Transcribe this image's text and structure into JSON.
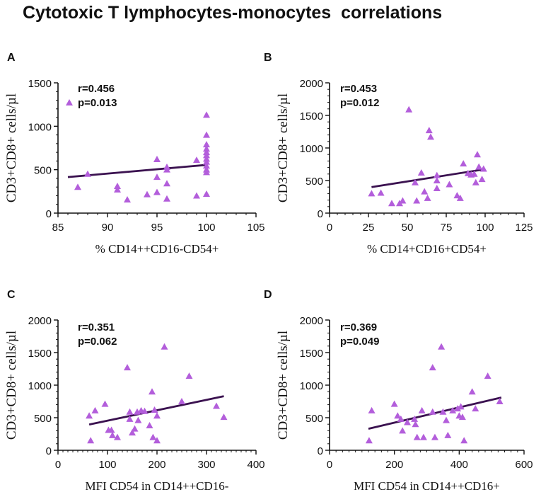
{
  "figure": {
    "title": "Cytotoxic T lymphocytes-monocytes  correlations"
  },
  "colors": {
    "marker": "#B35EDB",
    "fit_line": "#3B1250",
    "axis": "#111111",
    "text": "#111111"
  },
  "chart_data": [
    {
      "panel": "A",
      "type": "scatter",
      "xlabel": "% CD14++CD16-CD54+",
      "ylabel": "CD3+CD8+ cells/µl",
      "xlim": [
        85,
        105
      ],
      "ylim": [
        0,
        1500
      ],
      "xticks": [
        85,
        90,
        95,
        100,
        105
      ],
      "yticks": [
        0,
        500,
        1000,
        1500
      ],
      "stats": {
        "r": "r=0.456",
        "p": "p=0.013"
      },
      "legend": "top-left",
      "fit": {
        "x": [
          86,
          100
        ],
        "y": [
          415,
          555
        ]
      },
      "points": [
        {
          "x": 87,
          "y": 300
        },
        {
          "x": 88,
          "y": 450
        },
        {
          "x": 91,
          "y": 310
        },
        {
          "x": 91,
          "y": 270
        },
        {
          "x": 92,
          "y": 155
        },
        {
          "x": 94,
          "y": 215
        },
        {
          "x": 95,
          "y": 620
        },
        {
          "x": 95,
          "y": 415
        },
        {
          "x": 95,
          "y": 240
        },
        {
          "x": 96,
          "y": 530
        },
        {
          "x": 96,
          "y": 500
        },
        {
          "x": 96,
          "y": 340
        },
        {
          "x": 96,
          "y": 165
        },
        {
          "x": 99,
          "y": 610
        },
        {
          "x": 99,
          "y": 200
        },
        {
          "x": 100,
          "y": 1130
        },
        {
          "x": 100,
          "y": 900
        },
        {
          "x": 100,
          "y": 790
        },
        {
          "x": 100,
          "y": 740
        },
        {
          "x": 100,
          "y": 700
        },
        {
          "x": 100,
          "y": 665
        },
        {
          "x": 100,
          "y": 625
        },
        {
          "x": 100,
          "y": 590
        },
        {
          "x": 100,
          "y": 545
        },
        {
          "x": 100,
          "y": 500
        },
        {
          "x": 100,
          "y": 470
        },
        {
          "x": 100,
          "y": 220
        }
      ]
    },
    {
      "panel": "B",
      "type": "scatter",
      "xlabel": "% CD14+CD16+CD54+",
      "ylabel": "CD3+CD8+ cells/µl",
      "xlim": [
        0,
        125
      ],
      "ylim": [
        0,
        2000
      ],
      "xticks": [
        0,
        25,
        50,
        75,
        100,
        125
      ],
      "yticks": [
        0,
        500,
        1000,
        1500,
        2000
      ],
      "stats": {
        "r": "r=0.453",
        "p": "p=0.012"
      },
      "legend": "top-left",
      "fit": {
        "x": [
          27,
          99
        ],
        "y": [
          400,
          670
        ]
      },
      "points": [
        {
          "x": 27,
          "y": 300
        },
        {
          "x": 33,
          "y": 310
        },
        {
          "x": 40,
          "y": 150
        },
        {
          "x": 45,
          "y": 150
        },
        {
          "x": 47,
          "y": 190
        },
        {
          "x": 51,
          "y": 1590
        },
        {
          "x": 55,
          "y": 470
        },
        {
          "x": 56,
          "y": 190
        },
        {
          "x": 59,
          "y": 620
        },
        {
          "x": 61,
          "y": 330
        },
        {
          "x": 63,
          "y": 230
        },
        {
          "x": 64,
          "y": 1270
        },
        {
          "x": 65,
          "y": 1170
        },
        {
          "x": 69,
          "y": 580
        },
        {
          "x": 69,
          "y": 500
        },
        {
          "x": 69,
          "y": 380
        },
        {
          "x": 77,
          "y": 440
        },
        {
          "x": 82,
          "y": 270
        },
        {
          "x": 84,
          "y": 230
        },
        {
          "x": 86,
          "y": 760
        },
        {
          "x": 89,
          "y": 610
        },
        {
          "x": 91,
          "y": 590
        },
        {
          "x": 93,
          "y": 600
        },
        {
          "x": 94,
          "y": 470
        },
        {
          "x": 95,
          "y": 900
        },
        {
          "x": 96,
          "y": 710
        },
        {
          "x": 98,
          "y": 520
        },
        {
          "x": 99,
          "y": 680
        }
      ]
    },
    {
      "panel": "C",
      "type": "scatter",
      "xlabel": "MFI CD54 in CD14++CD16-",
      "ylabel": "CD3+CD8+ cells/µl",
      "xlim": [
        0,
        400
      ],
      "ylim": [
        0,
        2000
      ],
      "xticks": [
        0,
        100,
        200,
        300,
        400
      ],
      "yticks": [
        0,
        500,
        1000,
        1500,
        2000
      ],
      "stats": {
        "r": "r=0.351",
        "p": "p=0.062"
      },
      "legend": "top-left",
      "fit": {
        "x": [
          63,
          335
        ],
        "y": [
          395,
          830
        ]
      },
      "points": [
        {
          "x": 63,
          "y": 530
        },
        {
          "x": 66,
          "y": 150
        },
        {
          "x": 75,
          "y": 610
        },
        {
          "x": 95,
          "y": 710
        },
        {
          "x": 102,
          "y": 310
        },
        {
          "x": 108,
          "y": 310
        },
        {
          "x": 110,
          "y": 230
        },
        {
          "x": 120,
          "y": 200
        },
        {
          "x": 140,
          "y": 1270
        },
        {
          "x": 145,
          "y": 590
        },
        {
          "x": 145,
          "y": 480
        },
        {
          "x": 150,
          "y": 270
        },
        {
          "x": 155,
          "y": 330
        },
        {
          "x": 160,
          "y": 590
        },
        {
          "x": 162,
          "y": 460
        },
        {
          "x": 168,
          "y": 610
        },
        {
          "x": 175,
          "y": 600
        },
        {
          "x": 185,
          "y": 380
        },
        {
          "x": 190,
          "y": 900
        },
        {
          "x": 192,
          "y": 200
        },
        {
          "x": 195,
          "y": 620
        },
        {
          "x": 200,
          "y": 530
        },
        {
          "x": 200,
          "y": 150
        },
        {
          "x": 215,
          "y": 1590
        },
        {
          "x": 250,
          "y": 750
        },
        {
          "x": 265,
          "y": 1140
        },
        {
          "x": 320,
          "y": 680
        },
        {
          "x": 335,
          "y": 510
        }
      ]
    },
    {
      "panel": "D",
      "type": "scatter",
      "xlabel": "MFI CD54 in CD14++CD16+",
      "ylabel": "CD3+CD8+ cells/µl",
      "xlim": [
        0,
        600
      ],
      "ylim": [
        0,
        2000
      ],
      "xticks": [
        0,
        200,
        400,
        600
      ],
      "yticks": [
        0,
        500,
        1000,
        1500,
        2000
      ],
      "stats": {
        "r": "r=0.369",
        "p": "p=0.049"
      },
      "legend": "top-left",
      "fit": {
        "x": [
          120,
          530
        ],
        "y": [
          330,
          810
        ]
      },
      "points": [
        {
          "x": 122,
          "y": 150
        },
        {
          "x": 130,
          "y": 610
        },
        {
          "x": 200,
          "y": 710
        },
        {
          "x": 210,
          "y": 530
        },
        {
          "x": 220,
          "y": 480
        },
        {
          "x": 225,
          "y": 300
        },
        {
          "x": 240,
          "y": 430
        },
        {
          "x": 262,
          "y": 480
        },
        {
          "x": 265,
          "y": 400
        },
        {
          "x": 270,
          "y": 200
        },
        {
          "x": 285,
          "y": 610
        },
        {
          "x": 290,
          "y": 200
        },
        {
          "x": 318,
          "y": 1270
        },
        {
          "x": 318,
          "y": 590
        },
        {
          "x": 325,
          "y": 200
        },
        {
          "x": 345,
          "y": 1590
        },
        {
          "x": 350,
          "y": 590
        },
        {
          "x": 360,
          "y": 460
        },
        {
          "x": 365,
          "y": 230
        },
        {
          "x": 380,
          "y": 610
        },
        {
          "x": 395,
          "y": 640
        },
        {
          "x": 400,
          "y": 530
        },
        {
          "x": 405,
          "y": 670
        },
        {
          "x": 410,
          "y": 510
        },
        {
          "x": 415,
          "y": 150
        },
        {
          "x": 440,
          "y": 900
        },
        {
          "x": 450,
          "y": 640
        },
        {
          "x": 488,
          "y": 1140
        },
        {
          "x": 525,
          "y": 750
        }
      ]
    }
  ]
}
